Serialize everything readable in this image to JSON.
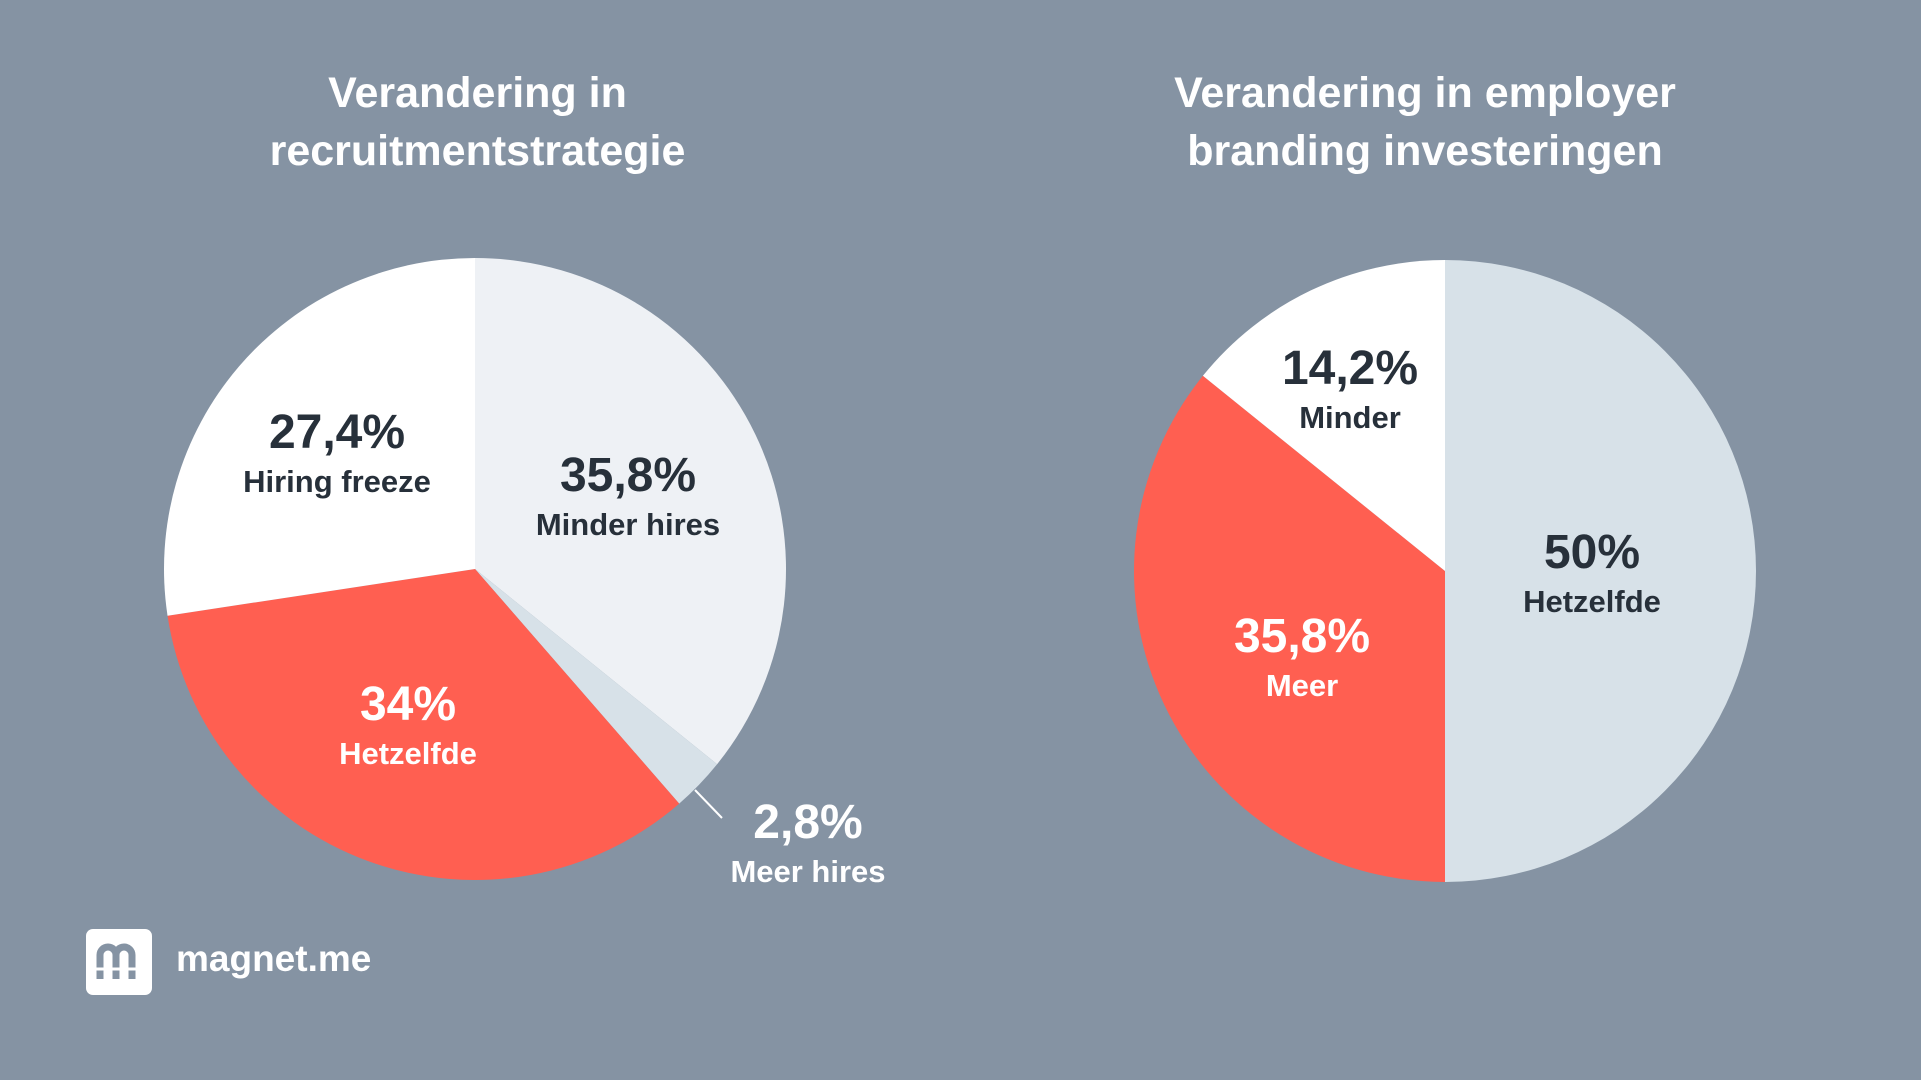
{
  "colors": {
    "background": "#8593a3",
    "coral": "#ff5f51",
    "white": "#ffffff",
    "light_gray": "#eef1f5",
    "pale_blue": "#d7e1e8",
    "dark_text": "#27303a"
  },
  "chart_data": [
    {
      "type": "pie",
      "title": "Verandering in recruitmentstrategie",
      "slices": [
        {
          "pct_label": "35,8%",
          "label": "Minder hires",
          "value": 35.8,
          "color": "#eef1f5"
        },
        {
          "pct_label": "2,8%",
          "label": "Meer hires",
          "value": 2.8,
          "color": "#d7e1e8"
        },
        {
          "pct_label": "34%",
          "label": "Hetzelfde",
          "value": 34,
          "color": "#ff5f51"
        },
        {
          "pct_label": "27,4%",
          "label": "Hiring freeze",
          "value": 27.4,
          "color": "#ffffff"
        }
      ]
    },
    {
      "type": "pie",
      "title": "Verandering in employer branding investeringen",
      "slices": [
        {
          "pct_label": "50%",
          "label": "Hetzelfde",
          "value": 50,
          "color": "#d7e1e8"
        },
        {
          "pct_label": "35,8%",
          "label": "Meer",
          "value": 35.8,
          "color": "#ff5f51"
        },
        {
          "pct_label": "14,2%",
          "label": "Minder",
          "value": 14.2,
          "color": "#ffffff"
        }
      ]
    }
  ],
  "brand": {
    "name": "magnet.me",
    "icon": "magnet-logo-icon"
  }
}
